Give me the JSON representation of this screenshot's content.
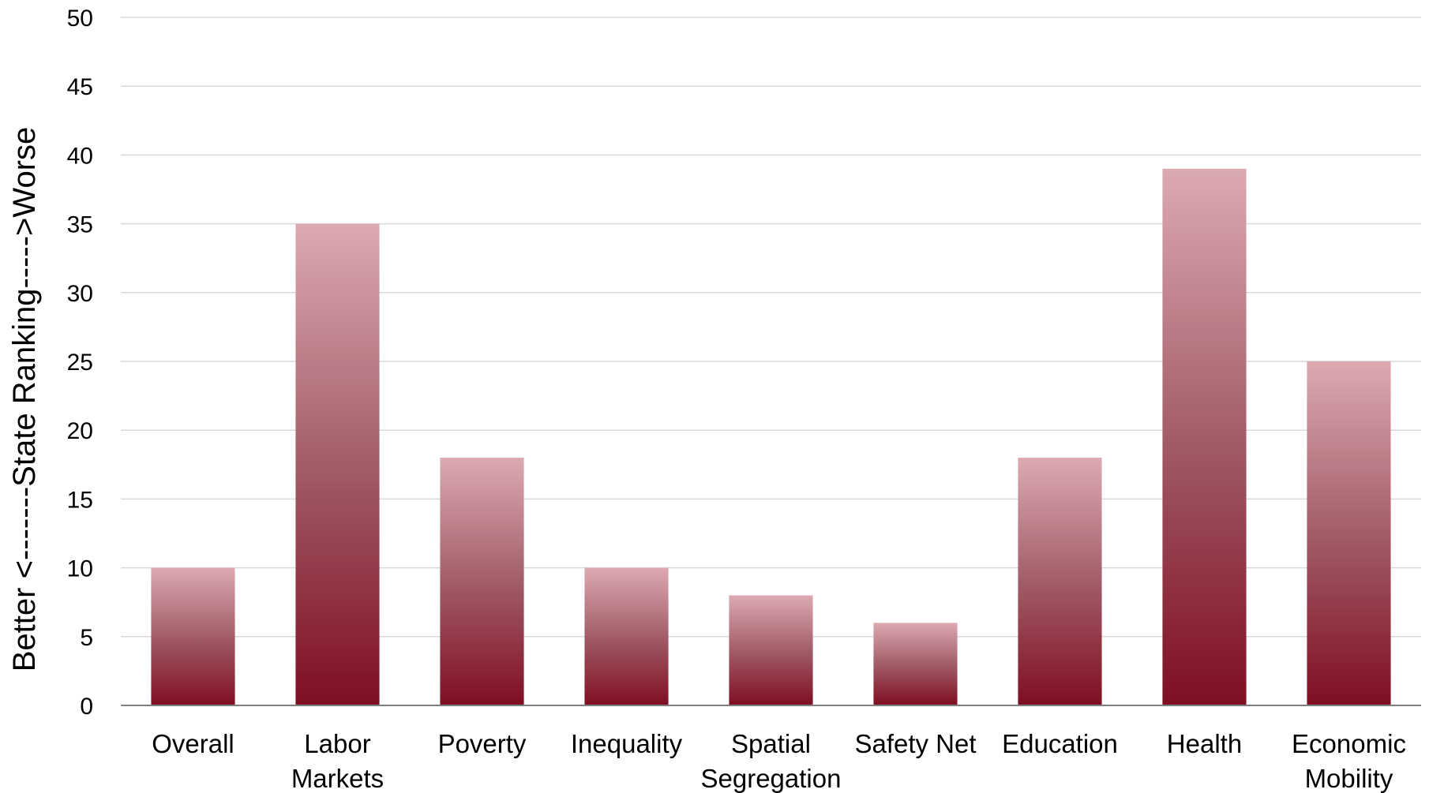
{
  "chart_data": {
    "type": "bar",
    "title": "",
    "xlabel": "",
    "ylabel": "Better <-------State Ranking----->Worse",
    "categories": [
      [
        "Overall"
      ],
      [
        "Labor",
        "Markets"
      ],
      [
        "Poverty"
      ],
      [
        "Inequality"
      ],
      [
        "Spatial",
        "Segregation"
      ],
      [
        "Safety Net"
      ],
      [
        "Education"
      ],
      [
        "Health"
      ],
      [
        "Economic",
        "Mobility"
      ]
    ],
    "values": [
      10,
      35,
      18,
      10,
      8,
      6,
      18,
      39,
      25
    ],
    "ylim": [
      0,
      50
    ],
    "yticks": [
      0,
      5,
      10,
      15,
      20,
      25,
      30,
      35,
      40,
      45,
      50
    ],
    "grid": true,
    "legend": "none",
    "colors": {
      "bar_top": "#dcaab2",
      "bar_mid": "#a25d68",
      "bar_bottom": "#7f0e22",
      "gridline": "#d9d9d9",
      "axis": "#7f7f7f"
    }
  }
}
